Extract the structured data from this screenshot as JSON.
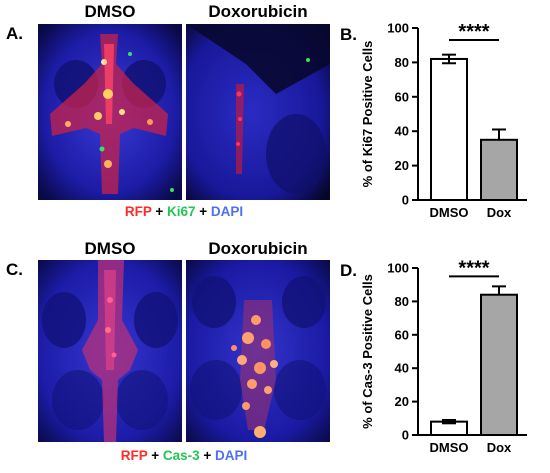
{
  "panels": {
    "A": {
      "letter": "A.",
      "headers": [
        "DMSO",
        "Doxorubicin"
      ],
      "legend": [
        {
          "text": "RFP",
          "color": "#ff2a2a"
        },
        {
          "text": " + ",
          "color": "#000000"
        },
        {
          "text": "Ki67",
          "color": "#23c653"
        },
        {
          "text": " + ",
          "color": "#000000"
        },
        {
          "text": "DAPI",
          "color": "#4f6ff0"
        }
      ]
    },
    "C": {
      "letter": "C.",
      "headers": [
        "DMSO",
        "Doxorubicin"
      ],
      "legend": [
        {
          "text": "RFP",
          "color": "#ff2a2a"
        },
        {
          "text": " + ",
          "color": "#000000"
        },
        {
          "text": "Cas-3",
          "color": "#23c653"
        },
        {
          "text": " + ",
          "color": "#000000"
        },
        {
          "text": "DAPI",
          "color": "#4f6ff0"
        }
      ]
    }
  },
  "chart_data": [
    {
      "panel": "B.",
      "type": "bar",
      "categories": [
        "DMSO",
        "Dox"
      ],
      "values": [
        82,
        35
      ],
      "errors": [
        2.5,
        6
      ],
      "bar_colors": [
        "#ffffff",
        "#a6a6a6"
      ],
      "ylabel": "% of Ki67 Positive Cells",
      "ylim": [
        0,
        100
      ],
      "yticks": [
        0,
        20,
        40,
        60,
        80,
        100
      ],
      "significance": "****"
    },
    {
      "panel": "D.",
      "type": "bar",
      "categories": [
        "DMSO",
        "Dox"
      ],
      "values": [
        8,
        84
      ],
      "errors": [
        1,
        5
      ],
      "bar_colors": [
        "#ffffff",
        "#a6a6a6"
      ],
      "ylabel": "% of Cas-3 Positive Cells",
      "ylim": [
        0,
        100
      ],
      "yticks": [
        0,
        20,
        40,
        60,
        80,
        100
      ],
      "significance": "****"
    }
  ]
}
